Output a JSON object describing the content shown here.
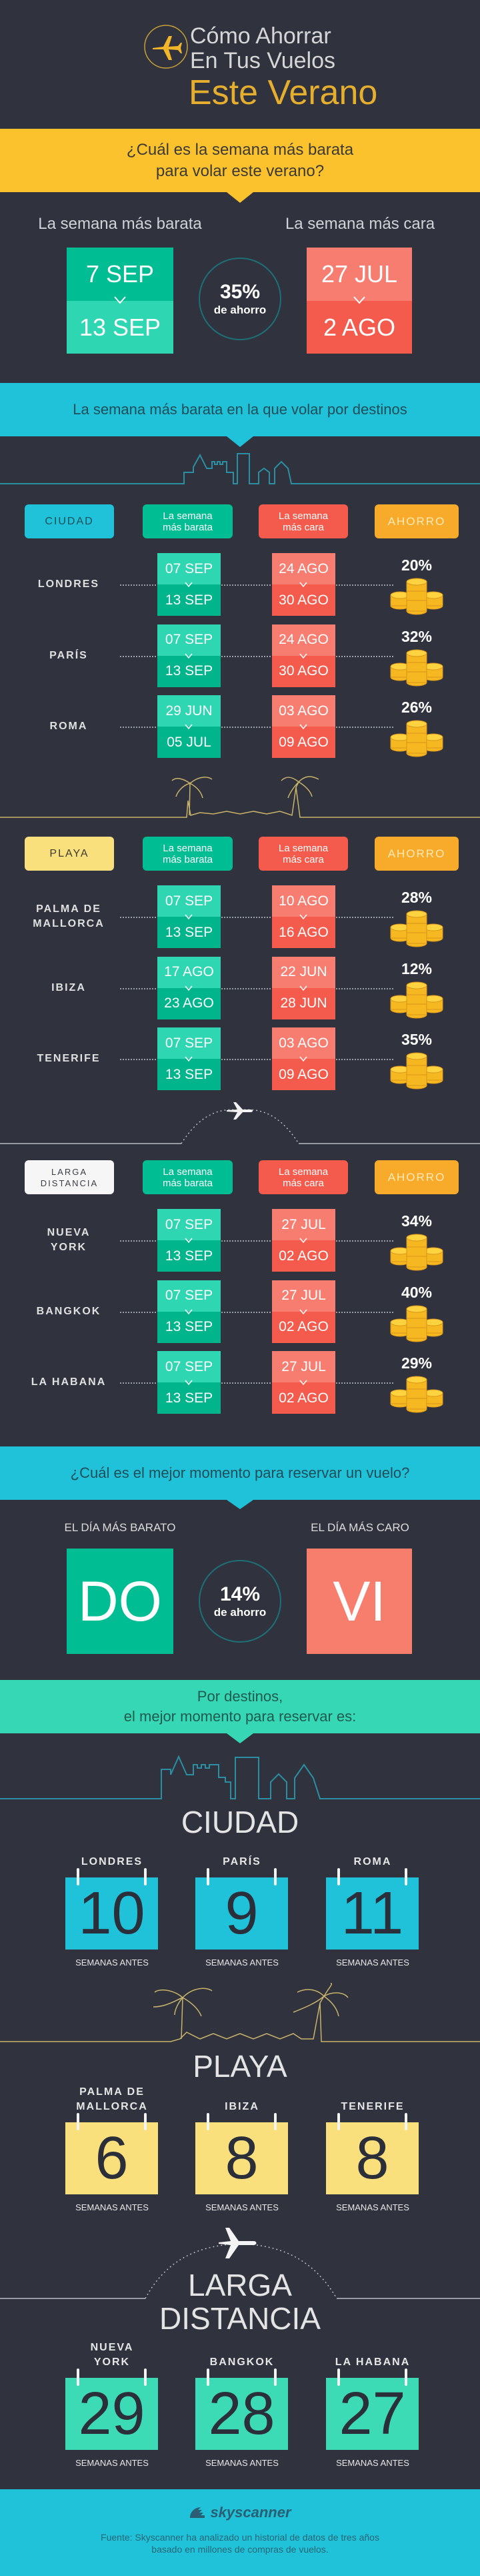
{
  "header": {
    "title_line1": "Cómo Ahorrar",
    "title_line2": "En Tus Vuelos",
    "title_line3": "Este Verano"
  },
  "cheapest_week": {
    "question_line1": "¿Cuál es la semana más barata",
    "question_line2": "para volar este verano?",
    "cheapest_label": "La semana más barata",
    "priciest_label": "La semana más cara",
    "cheapest_from": "7 SEP",
    "cheapest_to": "13 SEP",
    "priciest_from": "27 JUL",
    "priciest_to": "2 AGO",
    "savings_pct": "35%",
    "savings_label": "de ahorro"
  },
  "destinations_banner": "La semana más barata en la que volar por destinos",
  "columns": {
    "cheap": "La semana\nmás barata",
    "pricey": "La semana\nmás cara",
    "savings": "AHORRO"
  },
  "tables": [
    {
      "category": "CIUDAD",
      "rows": [
        {
          "name": "LONDRES",
          "cheap_from": "07 SEP",
          "cheap_to": "13 SEP",
          "pricey_from": "24 AGO",
          "pricey_to": "30 AGO",
          "savings": "20%"
        },
        {
          "name": "PARÍS",
          "cheap_from": "07 SEP",
          "cheap_to": "13 SEP",
          "pricey_from": "24 AGO",
          "pricey_to": "30 AGO",
          "savings": "32%"
        },
        {
          "name": "ROMA",
          "cheap_from": "29 JUN",
          "cheap_to": "05 JUL",
          "pricey_from": "03 AGO",
          "pricey_to": "09 AGO",
          "savings": "26%"
        }
      ]
    },
    {
      "category": "PLAYA",
      "rows": [
        {
          "name": "PALMA DE\nMALLORCA",
          "cheap_from": "07 SEP",
          "cheap_to": "13 SEP",
          "pricey_from": "10 AGO",
          "pricey_to": "16 AGO",
          "savings": "28%"
        },
        {
          "name": "IBIZA",
          "cheap_from": "17 AGO",
          "cheap_to": "23 AGO",
          "pricey_from": "22 JUN",
          "pricey_to": "28 JUN",
          "savings": "12%"
        },
        {
          "name": "TENERIFE",
          "cheap_from": "07 SEP",
          "cheap_to": "13 SEP",
          "pricey_from": "03 AGO",
          "pricey_to": "09 AGO",
          "savings": "35%"
        }
      ]
    },
    {
      "category": "LARGA\nDISTANCIA",
      "rows": [
        {
          "name": "NUEVA\nYORK",
          "cheap_from": "07 SEP",
          "cheap_to": "13 SEP",
          "pricey_from": "27 JUL",
          "pricey_to": "02 AGO",
          "savings": "34%"
        },
        {
          "name": "BANGKOK",
          "cheap_from": "07 SEP",
          "cheap_to": "13 SEP",
          "pricey_from": "27 JUL",
          "pricey_to": "02 AGO",
          "savings": "40%"
        },
        {
          "name": "LA HABANA",
          "cheap_from": "07 SEP",
          "cheap_to": "13 SEP",
          "pricey_from": "27 JUL",
          "pricey_to": "02 AGO",
          "savings": "29%"
        }
      ]
    }
  ],
  "best_day": {
    "question": "¿Cuál es el mejor momento para reservar un vuelo?",
    "cheapest_label": "EL DÍA MÁS BARATO",
    "priciest_label": "EL DÍA MÁS CARO",
    "cheapest_day": "DO",
    "priciest_day": "VI",
    "savings_pct": "14%",
    "savings_label": "de ahorro"
  },
  "booking_banner": {
    "line1": "Por destinos,",
    "line2": "el mejor momento para reservar es:"
  },
  "booking_groups": [
    {
      "title": "CIUDAD",
      "items": [
        {
          "name": "LONDRES",
          "weeks": "10"
        },
        {
          "name": "PARÍS",
          "weeks": "9"
        },
        {
          "name": "ROMA",
          "weeks": "11"
        }
      ]
    },
    {
      "title": "PLAYA",
      "items": [
        {
          "name": "PALMA DE\nMALLORCA",
          "weeks": "6"
        },
        {
          "name": "IBIZA",
          "weeks": "8"
        },
        {
          "name": "TENERIFE",
          "weeks": "8"
        }
      ]
    },
    {
      "title": "LARGA\nDISTANCIA",
      "items": [
        {
          "name": "NUEVA\nYORK",
          "weeks": "29"
        },
        {
          "name": "BANGKOK",
          "weeks": "28"
        },
        {
          "name": "LA HABANA",
          "weeks": "27"
        }
      ]
    }
  ],
  "weeks_unit": "SEMANAS ANTES",
  "footer": {
    "logo": "skyscanner",
    "source_line1": "Fuente: Skyscanner ha analizado un historial de datos de tres años",
    "source_line2": "basado en millones de compras de vuelos."
  },
  "colors": {
    "background": "#30333e",
    "yellow": "#fbc22e",
    "cyan": "#1fc2d8",
    "teal": "#36d7b5",
    "green": "#00bd93",
    "green_light": "#2ed6b1",
    "red": "#f45b4c",
    "red_light": "#f77d71",
    "orange": "#f8ab2a",
    "beach": "#f9e07c"
  }
}
